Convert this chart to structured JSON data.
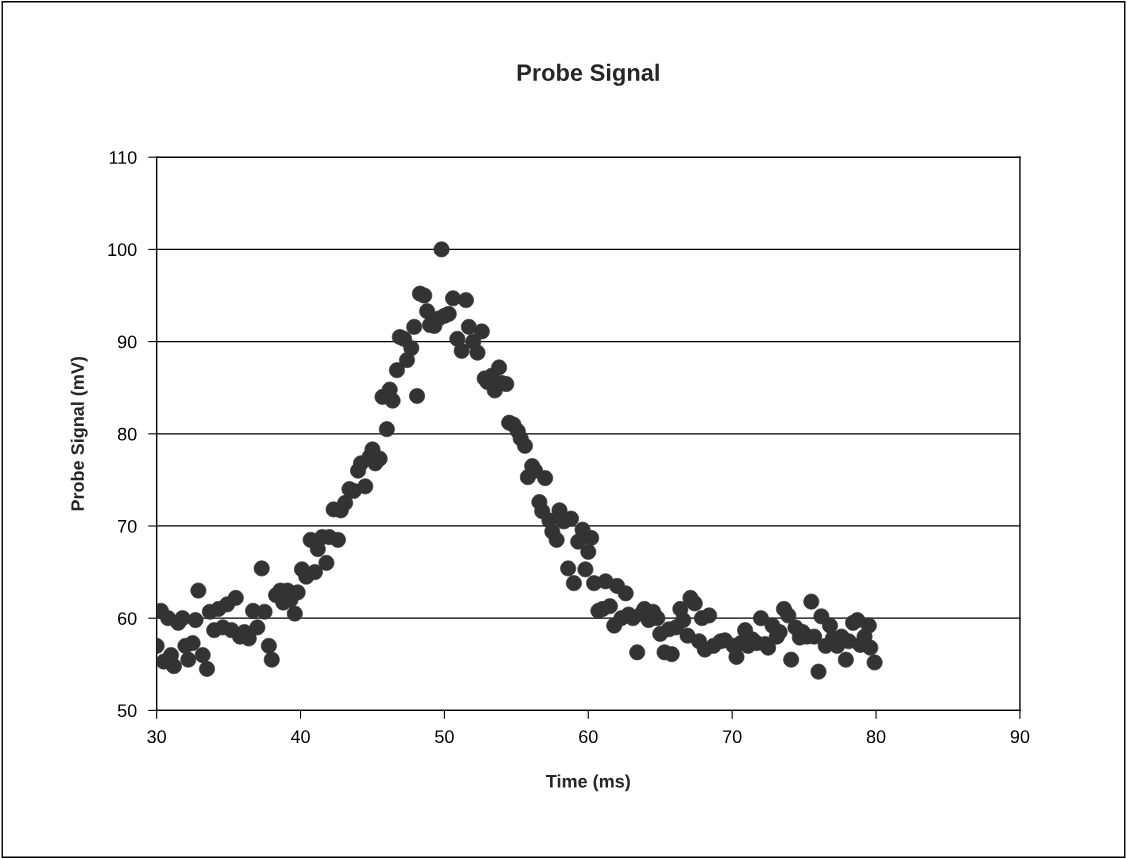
{
  "chart_data": {
    "type": "scatter",
    "title": "Probe Signal",
    "xlabel": "Time (ms)",
    "ylabel": "Probe Signal (mV)",
    "xlim": [
      30,
      90
    ],
    "xticks": [
      30,
      40,
      50,
      60,
      70,
      80,
      90
    ],
    "ylim": [
      50,
      110
    ],
    "yticks": [
      50,
      60,
      70,
      80,
      90,
      100,
      110
    ],
    "grid": "y",
    "legend": false,
    "marker": "circle",
    "series": [
      {
        "color": "#333333",
        "x": [
          30.0,
          30.3,
          30.5,
          30.8,
          31.0,
          31.2,
          31.5,
          31.8,
          32.0,
          32.2,
          32.5,
          32.7,
          32.9,
          33.2,
          33.5,
          33.7,
          34.0,
          34.3,
          34.6,
          34.9,
          35.2,
          35.5,
          35.8,
          36.1,
          36.4,
          36.7,
          37.0,
          37.3,
          37.5,
          37.8,
          38.0,
          38.3,
          38.6,
          38.8,
          39.1,
          39.3,
          39.6,
          39.8,
          40.1,
          40.4,
          40.7,
          41.0,
          41.2,
          41.5,
          41.8,
          42.0,
          42.3,
          42.6,
          42.8,
          43.1,
          43.4,
          43.7,
          44.0,
          44.2,
          44.5,
          44.8,
          45.0,
          45.2,
          45.5,
          45.7,
          46.0,
          46.2,
          46.4,
          46.7,
          46.9,
          47.2,
          47.4,
          47.7,
          47.9,
          48.1,
          48.3,
          48.6,
          48.8,
          49.0,
          49.3,
          49.6,
          49.8,
          50.0,
          50.3,
          50.6,
          50.9,
          51.2,
          51.5,
          51.7,
          52.0,
          52.3,
          52.6,
          52.8,
          53.0,
          53.3,
          53.5,
          53.8,
          54.0,
          54.3,
          54.5,
          54.8,
          55.1,
          55.3,
          55.6,
          55.8,
          56.1,
          56.3,
          56.6,
          56.8,
          57.0,
          57.3,
          57.5,
          57.8,
          58.0,
          58.3,
          58.6,
          58.8,
          59.0,
          59.3,
          59.6,
          59.8,
          60.0,
          60.2,
          60.4,
          60.7,
          61.0,
          61.2,
          61.5,
          61.8,
          62.0,
          62.3,
          62.6,
          62.8,
          63.1,
          63.4,
          63.7,
          63.9,
          64.2,
          64.5,
          64.8,
          65.0,
          65.3,
          65.6,
          65.8,
          66.1,
          66.4,
          66.6,
          66.9,
          67.1,
          67.4,
          67.7,
          67.9,
          68.1,
          68.4,
          68.7,
          69.2,
          69.5,
          70.1,
          70.3,
          70.6,
          70.9,
          71.1,
          71.4,
          71.7,
          72.0,
          72.3,
          72.5,
          72.8,
          73.1,
          73.3,
          73.6,
          73.9,
          74.1,
          74.4,
          74.7,
          74.9,
          75.2,
          75.5,
          75.7,
          76.0,
          76.2,
          76.5,
          76.8,
          77.0,
          77.3,
          77.6,
          77.9,
          78.1,
          78.4,
          78.7,
          78.9,
          79.2,
          79.5,
          79.6,
          79.9
        ],
        "values": [
          57.0,
          60.8,
          55.3,
          60.0,
          56.0,
          54.8,
          59.5,
          60.0,
          57.0,
          55.5,
          57.3,
          59.8,
          63.0,
          56.0,
          54.5,
          60.7,
          58.7,
          61.0,
          59.0,
          61.5,
          58.7,
          62.2,
          58.0,
          58.5,
          57.8,
          60.8,
          59.0,
          65.4,
          60.7,
          57.0,
          55.5,
          62.5,
          63.0,
          61.7,
          63.0,
          62.0,
          60.5,
          62.8,
          65.3,
          64.5,
          68.5,
          65.0,
          67.5,
          68.8,
          66.0,
          68.8,
          71.8,
          68.5,
          71.7,
          72.5,
          74.0,
          73.8,
          76.0,
          76.8,
          74.3,
          77.5,
          78.3,
          76.8,
          77.3,
          84.0,
          80.5,
          84.8,
          83.6,
          86.9,
          90.5,
          90.3,
          88.0,
          89.3,
          91.6,
          84.1,
          95.2,
          95.0,
          93.3,
          91.8,
          91.7,
          92.5,
          100.0,
          92.8,
          93.0,
          94.7,
          90.3,
          89.0,
          94.5,
          91.6,
          90.0,
          88.8,
          91.1,
          86.0,
          85.6,
          86.3,
          84.7,
          87.2,
          85.5,
          85.4,
          81.2,
          81.0,
          80.3,
          79.5,
          78.7,
          75.3,
          76.5,
          76.0,
          72.6,
          71.6,
          75.2,
          70.6,
          69.4,
          68.5,
          71.7,
          70.5,
          65.4,
          70.8,
          63.8,
          68.3,
          69.6,
          65.3,
          67.2,
          68.7,
          63.8,
          60.8,
          61.0,
          64.0,
          61.3,
          59.2,
          63.5,
          60.0,
          62.7,
          60.4,
          60.0,
          56.3,
          60.5,
          61.0,
          59.8,
          60.7,
          60.0,
          58.3,
          56.3,
          58.8,
          56.1,
          59.0,
          61.0,
          59.8,
          58.1,
          62.2,
          61.6,
          57.5,
          60.0,
          56.6,
          60.3,
          57.0,
          57.5,
          57.6,
          57.0,
          55.8,
          57.3,
          58.7,
          57.0,
          57.7,
          57.3,
          60.0,
          57.2,
          56.8,
          59.2,
          58.0,
          58.5,
          61.0,
          60.3,
          55.5,
          59.0,
          57.9,
          58.5,
          58.0,
          61.8,
          58.0,
          54.2,
          60.2,
          57.0,
          59.2,
          57.8,
          57.0,
          58.0,
          55.5,
          57.5,
          59.5,
          59.8,
          57.1,
          58.0,
          59.2,
          56.8,
          55.2
        ]
      }
    ]
  }
}
